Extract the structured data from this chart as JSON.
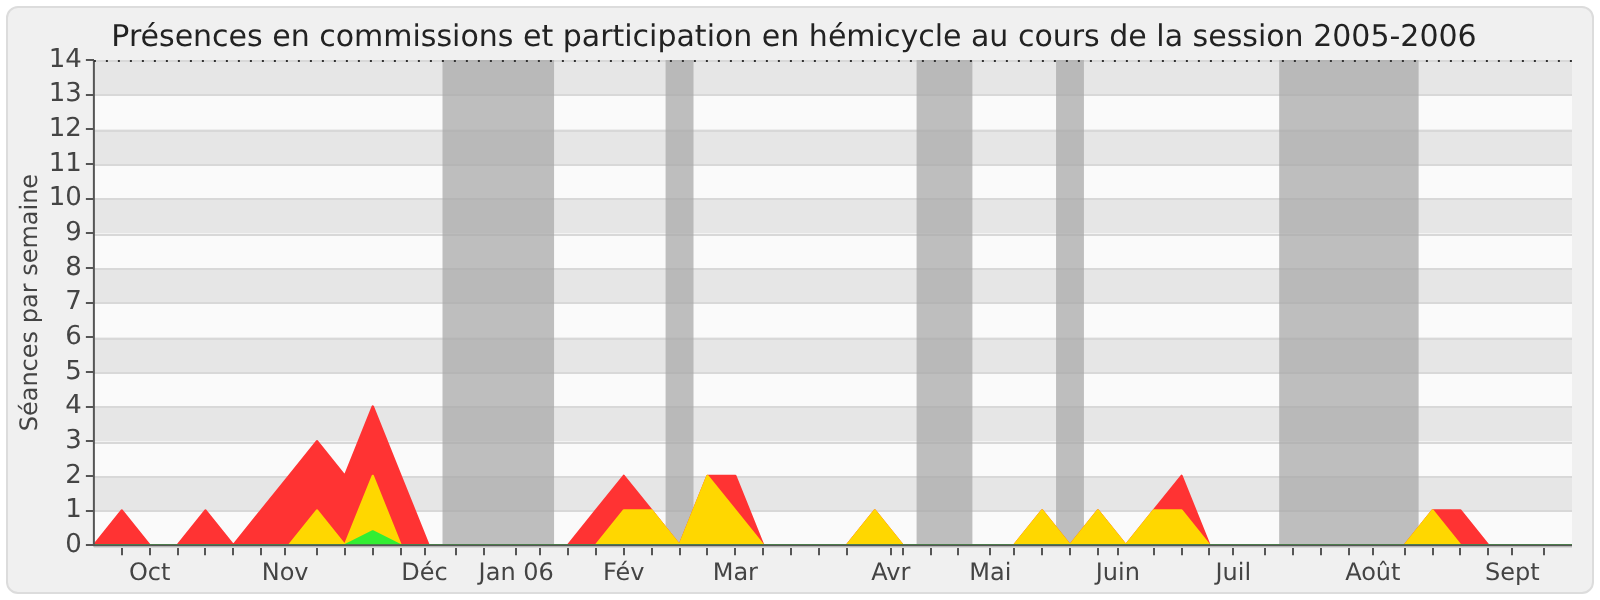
{
  "chart_data": {
    "type": "area",
    "title": "Présences en commissions et participation en hémicycle au cours de la session 2005-2006",
    "ylabel": "Séances par semaine",
    "x": [
      "2005-09-26",
      "2005-10-03",
      "2005-10-10",
      "2005-10-17",
      "2005-10-24",
      "2005-10-31",
      "2005-11-07",
      "2005-11-14",
      "2005-11-21",
      "2005-11-28",
      "2005-12-05",
      "2005-12-12",
      "2005-12-19",
      "2005-12-26",
      "2006-01-02",
      "2006-01-09",
      "2006-01-16",
      "2006-01-23",
      "2006-01-30",
      "2006-02-06",
      "2006-02-13",
      "2006-02-20",
      "2006-02-27",
      "2006-03-06",
      "2006-03-13",
      "2006-03-20",
      "2006-03-27",
      "2006-04-03",
      "2006-04-10",
      "2006-04-17",
      "2006-04-24",
      "2006-05-01",
      "2006-05-08",
      "2006-05-15",
      "2006-05-22",
      "2006-05-29",
      "2006-06-05",
      "2006-06-12",
      "2006-06-19",
      "2006-06-26",
      "2006-07-03",
      "2006-07-10",
      "2006-07-17",
      "2006-07-24",
      "2006-07-31",
      "2006-08-07",
      "2006-08-14",
      "2006-08-21",
      "2006-08-28",
      "2006-09-04",
      "2006-09-11",
      "2006-09-18",
      "2006-09-25",
      "2006-10-02"
    ],
    "series": [
      {
        "color": "#ff3333",
        "values": [
          0,
          1,
          0,
          0,
          1,
          0,
          1,
          2,
          3,
          2,
          4,
          2,
          0,
          0,
          0,
          0,
          0,
          0,
          1,
          2,
          1,
          0,
          2,
          2,
          0,
          0,
          0,
          0,
          1,
          0,
          0,
          0,
          0,
          0,
          1,
          0,
          1,
          0,
          1,
          2,
          0,
          0,
          0,
          0,
          0,
          0,
          0,
          0,
          1,
          1,
          0,
          0,
          0,
          0
        ]
      },
      {
        "color": "#ffd700",
        "values": [
          0,
          0,
          0,
          0,
          0,
          0,
          0,
          0,
          1,
          0,
          2,
          0,
          0,
          0,
          0,
          0,
          0,
          0,
          0,
          1,
          1,
          0,
          2,
          1,
          0,
          0,
          0,
          0,
          1,
          0,
          0,
          0,
          0,
          0,
          1,
          0,
          1,
          0,
          1,
          1,
          0,
          0,
          0,
          0,
          0,
          0,
          0,
          0,
          1,
          0,
          0,
          0,
          0,
          0
        ]
      },
      {
        "color": "#33ee33",
        "values": [
          0,
          0,
          0,
          0,
          0,
          0,
          0,
          0,
          0,
          0,
          0.4,
          0,
          0,
          0,
          0,
          0,
          0,
          0,
          0,
          0,
          0,
          0,
          0,
          0,
          0,
          0,
          0,
          0,
          0,
          0,
          0,
          0,
          0,
          0,
          0,
          0,
          0,
          0,
          0,
          0,
          0,
          0,
          0,
          0,
          0,
          0,
          0,
          0,
          0,
          0,
          0,
          0,
          0,
          0
        ]
      }
    ],
    "xlim": [
      "2005-09-26",
      "2006-10-02"
    ],
    "xticks": [
      {
        "value": "2005-10-03",
        "label": null
      },
      {
        "value": "2005-10-10",
        "label": "Oct"
      },
      {
        "value": "2005-10-17",
        "label": null
      },
      {
        "value": "2005-10-24",
        "label": null
      },
      {
        "value": "2005-10-31",
        "label": null
      },
      {
        "value": "2005-11-07",
        "label": null
      },
      {
        "value": "2005-11-13",
        "label": "Nov"
      },
      {
        "value": "2005-11-21",
        "label": null
      },
      {
        "value": "2005-11-28",
        "label": null
      },
      {
        "value": "2005-12-05",
        "label": null
      },
      {
        "value": "2005-12-12",
        "label": null
      },
      {
        "value": "2005-12-18",
        "label": "Déc"
      },
      {
        "value": "2005-12-26",
        "label": null
      },
      {
        "value": "2006-01-02",
        "label": null
      },
      {
        "value": "2006-01-10",
        "label": "Jan 06"
      },
      {
        "value": "2006-01-16",
        "label": null
      },
      {
        "value": "2006-01-23",
        "label": null
      },
      {
        "value": "2006-01-30",
        "label": null
      },
      {
        "value": "2006-02-06",
        "label": "Fév"
      },
      {
        "value": "2006-02-13",
        "label": null
      },
      {
        "value": "2006-02-20",
        "label": null
      },
      {
        "value": "2006-02-27",
        "label": null
      },
      {
        "value": "2006-03-06",
        "label": "Mar"
      },
      {
        "value": "2006-03-13",
        "label": null
      },
      {
        "value": "2006-03-20",
        "label": null
      },
      {
        "value": "2006-03-27",
        "label": null
      },
      {
        "value": "2006-04-03",
        "label": null
      },
      {
        "value": "2006-04-14",
        "label": "Avr"
      },
      {
        "value": "2006-04-17",
        "label": null
      },
      {
        "value": "2006-04-24",
        "label": null
      },
      {
        "value": "2006-05-01",
        "label": null
      },
      {
        "value": "2006-05-09",
        "label": "Mai"
      },
      {
        "value": "2006-05-15",
        "label": null
      },
      {
        "value": "2006-05-22",
        "label": null
      },
      {
        "value": "2006-05-29",
        "label": null
      },
      {
        "value": "2006-06-05",
        "label": null
      },
      {
        "value": "2006-06-10",
        "label": "Juin"
      },
      {
        "value": "2006-06-19",
        "label": null
      },
      {
        "value": "2006-06-26",
        "label": null
      },
      {
        "value": "2006-07-03",
        "label": null
      },
      {
        "value": "2006-07-09",
        "label": "Juil"
      },
      {
        "value": "2006-07-17",
        "label": null
      },
      {
        "value": "2006-07-24",
        "label": null
      },
      {
        "value": "2006-07-31",
        "label": null
      },
      {
        "value": "2006-08-07",
        "label": null
      },
      {
        "value": "2006-08-13",
        "label": "Août"
      },
      {
        "value": "2006-08-21",
        "label": null
      },
      {
        "value": "2006-08-28",
        "label": null
      },
      {
        "value": "2006-09-04",
        "label": null
      },
      {
        "value": "2006-09-11",
        "label": null
      },
      {
        "value": "2006-09-17",
        "label": "Sept"
      },
      {
        "value": "2006-09-25",
        "label": null
      }
    ],
    "ylim": [
      0,
      14
    ],
    "yticks": [
      0,
      1,
      2,
      3,
      4,
      5,
      6,
      7,
      8,
      9,
      10,
      11,
      12,
      13,
      14
    ],
    "grid": "y",
    "legend": false,
    "bands": [
      {
        "axis": "x",
        "from": "2005-12-22T12:00",
        "to": "2006-01-19T12:00",
        "color": "#aaaaaa"
      },
      {
        "axis": "x",
        "from": "2006-02-16T12:00",
        "to": "2006-02-23T12:00",
        "color": "#aaaaaa"
      },
      {
        "axis": "x",
        "from": "2006-04-20T12:00",
        "to": "2006-05-04T12:00",
        "color": "#aaaaaa"
      },
      {
        "axis": "x",
        "from": "2006-05-25T12:00",
        "to": "2006-06-01T12:00",
        "color": "#aaaaaa"
      },
      {
        "axis": "x",
        "from": "2006-07-20T12:00",
        "to": "2006-08-24T12:00",
        "color": "#aaaaaa"
      }
    ]
  }
}
